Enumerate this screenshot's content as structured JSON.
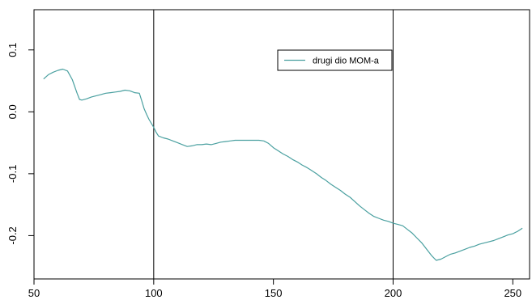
{
  "chart_data": {
    "type": "line",
    "title": "",
    "xlabel": "",
    "ylabel": "",
    "xlim": [
      50,
      257
    ],
    "ylim": [
      -0.27,
      0.165
    ],
    "x_ticks": [
      {
        "value": 50,
        "label": "50"
      },
      {
        "value": 100,
        "label": "100"
      },
      {
        "value": 150,
        "label": "150"
      },
      {
        "value": 200,
        "label": "200"
      },
      {
        "value": 250,
        "label": "250"
      }
    ],
    "y_ticks": [
      {
        "value": 0.1,
        "label": "0.1"
      },
      {
        "value": 0.0,
        "label": "0.0"
      },
      {
        "value": -0.1,
        "label": "-0.1"
      },
      {
        "value": -0.2,
        "label": "-0.2"
      }
    ],
    "vlines": [
      100,
      200
    ],
    "legend_position": "top-center",
    "series": [
      {
        "name": "drugi dio MOM-a",
        "color": "#4aa0a0",
        "points": [
          [
            54,
            0.053
          ],
          [
            56,
            0.06
          ],
          [
            58,
            0.064
          ],
          [
            60,
            0.067
          ],
          [
            62,
            0.069
          ],
          [
            64,
            0.066
          ],
          [
            66,
            0.052
          ],
          [
            68,
            0.03
          ],
          [
            69,
            0.02
          ],
          [
            70,
            0.019
          ],
          [
            72,
            0.021
          ],
          [
            74,
            0.024
          ],
          [
            76,
            0.026
          ],
          [
            78,
            0.028
          ],
          [
            80,
            0.03
          ],
          [
            82,
            0.031
          ],
          [
            84,
            0.032
          ],
          [
            86,
            0.033
          ],
          [
            88,
            0.035
          ],
          [
            90,
            0.034
          ],
          [
            92,
            0.031
          ],
          [
            94,
            0.03
          ],
          [
            95,
            0.018
          ],
          [
            96,
            0.005
          ],
          [
            97,
            -0.004
          ],
          [
            98,
            -0.012
          ],
          [
            100,
            -0.025
          ],
          [
            101,
            -0.033
          ],
          [
            102,
            -0.039
          ],
          [
            104,
            -0.042
          ],
          [
            106,
            -0.044
          ],
          [
            108,
            -0.047
          ],
          [
            110,
            -0.05
          ],
          [
            112,
            -0.053
          ],
          [
            114,
            -0.056
          ],
          [
            116,
            -0.055
          ],
          [
            118,
            -0.053
          ],
          [
            120,
            -0.053
          ],
          [
            122,
            -0.052
          ],
          [
            124,
            -0.053
          ],
          [
            126,
            -0.051
          ],
          [
            128,
            -0.049
          ],
          [
            130,
            -0.048
          ],
          [
            132,
            -0.047
          ],
          [
            134,
            -0.046
          ],
          [
            136,
            -0.046
          ],
          [
            138,
            -0.046
          ],
          [
            140,
            -0.046
          ],
          [
            142,
            -0.046
          ],
          [
            144,
            -0.046
          ],
          [
            146,
            -0.047
          ],
          [
            148,
            -0.051
          ],
          [
            150,
            -0.058
          ],
          [
            152,
            -0.063
          ],
          [
            154,
            -0.068
          ],
          [
            156,
            -0.072
          ],
          [
            158,
            -0.077
          ],
          [
            160,
            -0.081
          ],
          [
            162,
            -0.086
          ],
          [
            164,
            -0.09
          ],
          [
            166,
            -0.095
          ],
          [
            168,
            -0.1
          ],
          [
            170,
            -0.106
          ],
          [
            172,
            -0.111
          ],
          [
            174,
            -0.117
          ],
          [
            176,
            -0.122
          ],
          [
            178,
            -0.127
          ],
          [
            180,
            -0.133
          ],
          [
            182,
            -0.138
          ],
          [
            184,
            -0.145
          ],
          [
            186,
            -0.152
          ],
          [
            188,
            -0.158
          ],
          [
            190,
            -0.164
          ],
          [
            192,
            -0.169
          ],
          [
            194,
            -0.172
          ],
          [
            196,
            -0.175
          ],
          [
            198,
            -0.177
          ],
          [
            200,
            -0.18
          ],
          [
            202,
            -0.182
          ],
          [
            204,
            -0.184
          ],
          [
            206,
            -0.19
          ],
          [
            208,
            -0.196
          ],
          [
            210,
            -0.204
          ],
          [
            212,
            -0.212
          ],
          [
            214,
            -0.222
          ],
          [
            216,
            -0.232
          ],
          [
            218,
            -0.24
          ],
          [
            220,
            -0.238
          ],
          [
            222,
            -0.234
          ],
          [
            224,
            -0.23
          ],
          [
            226,
            -0.228
          ],
          [
            228,
            -0.225
          ],
          [
            230,
            -0.222
          ],
          [
            232,
            -0.219
          ],
          [
            234,
            -0.217
          ],
          [
            236,
            -0.214
          ],
          [
            238,
            -0.212
          ],
          [
            240,
            -0.21
          ],
          [
            242,
            -0.208
          ],
          [
            244,
            -0.205
          ],
          [
            246,
            -0.202
          ],
          [
            248,
            -0.199
          ],
          [
            250,
            -0.197
          ],
          [
            252,
            -0.193
          ],
          [
            254,
            -0.188
          ]
        ]
      }
    ]
  }
}
